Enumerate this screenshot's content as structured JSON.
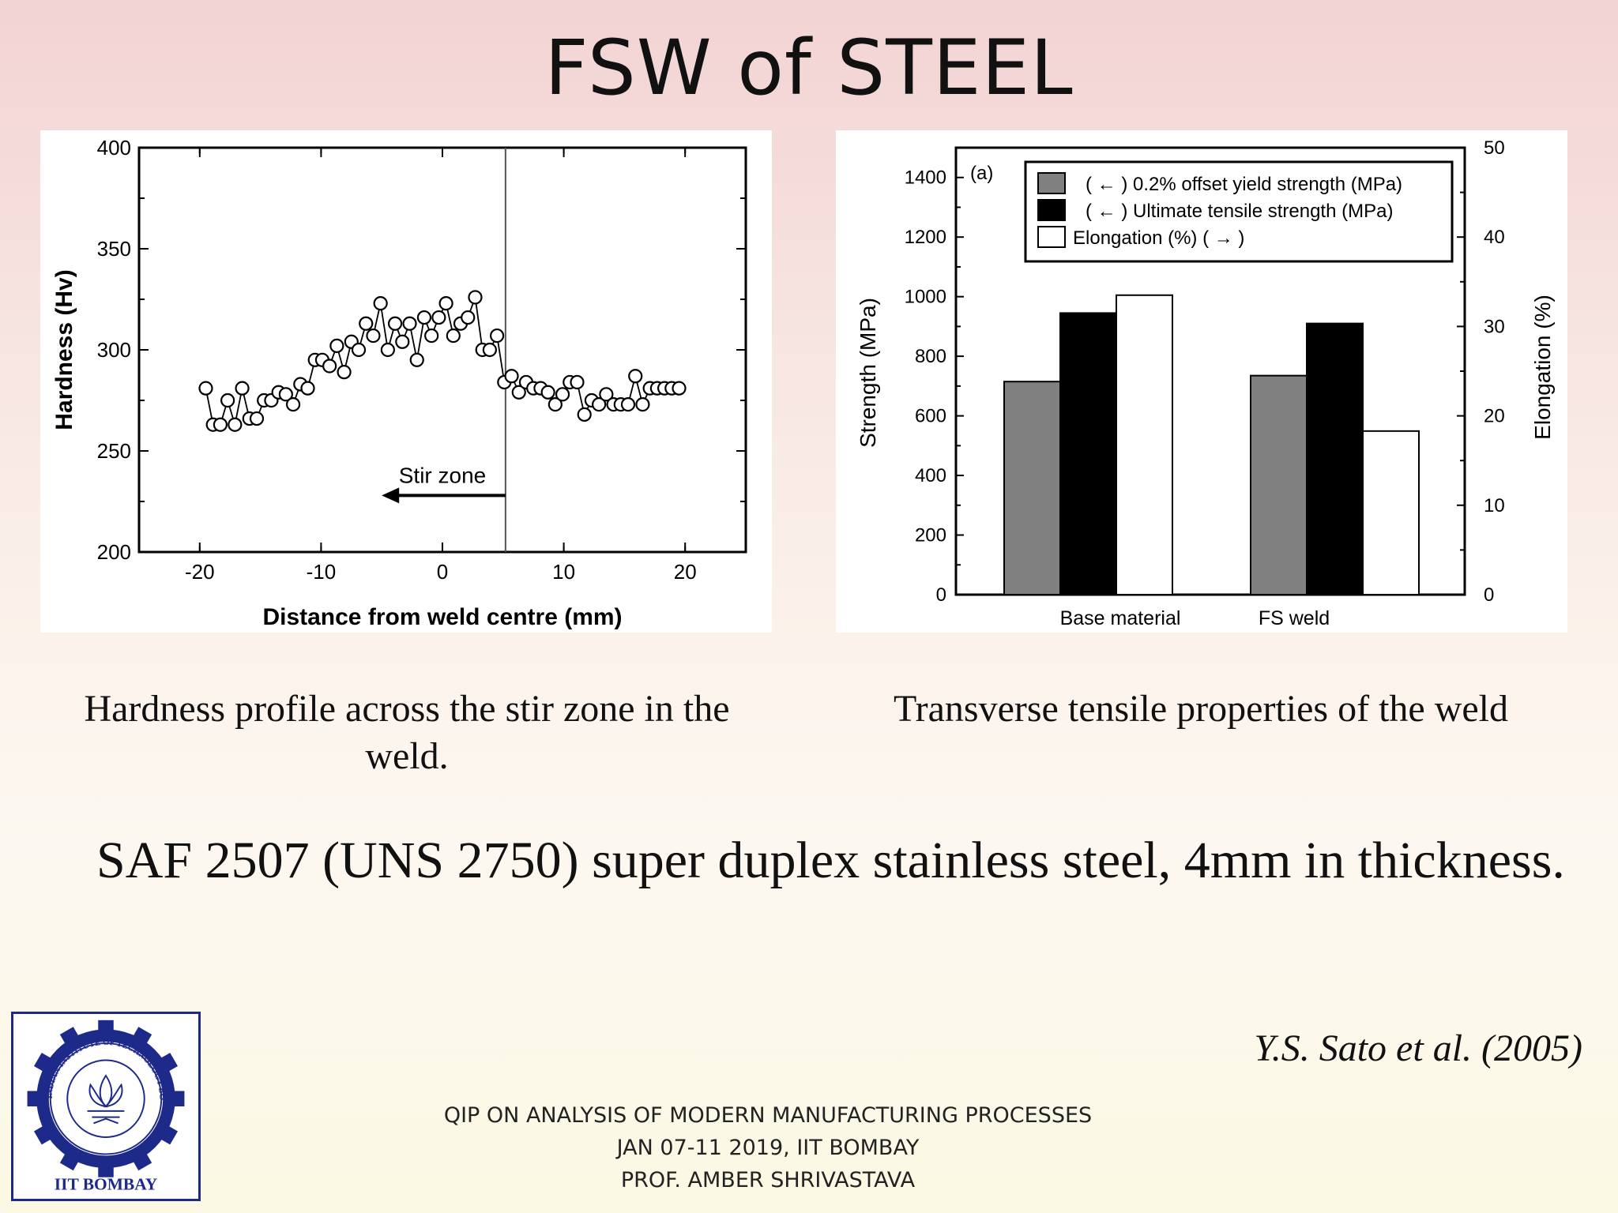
{
  "slide": {
    "title": "FSW of STEEL",
    "caption_left": "Hardness profile across the stir zone in the weld.",
    "caption_right": "Transverse tensile properties of the weld",
    "material_text": "SAF 2507 (UNS 2750) super duplex stainless steel, 4mm in thickness.",
    "citation": "Y.S. Sato et al. (2005)",
    "footer": [
      "QIP ON ANALYSIS OF MODERN MANUFACTURING PROCESSES",
      "JAN 07-11 2019, IIT BOMBAY",
      "PROF. AMBER SHRIVASTAVA"
    ],
    "logo_text": "IIT BOMBAY",
    "logo_ring_text": "INDIAN INSTITUTE OF TECHNOLOGY BOMBAY"
  },
  "chart_data": [
    {
      "type": "line",
      "xlabel": "Distance from weld centre (mm)",
      "ylabel": "Hardness (Hv)",
      "xlim": [
        -25,
        25
      ],
      "ylim": [
        200,
        400
      ],
      "xticks": [
        -20,
        -10,
        0,
        10,
        20
      ],
      "xtick_labels": [
        "-20",
        "-10",
        "0",
        "10",
        "20"
      ],
      "yticks": [
        200,
        250,
        300,
        350,
        400
      ],
      "ytick_labels": [
        "200",
        "250",
        "300",
        "350",
        "400"
      ],
      "vline_x": 5.2,
      "annotation": "Stir zone",
      "grid": false,
      "series": [
        {
          "x": [
            -19.5,
            -18.9,
            -18.3,
            -17.7,
            -17.1,
            -16.5,
            -15.9,
            -15.3,
            -14.7,
            -14.1,
            -13.5,
            -12.9,
            -12.3,
            -11.7,
            -11.1,
            -10.5,
            -9.9,
            -9.3,
            -8.7,
            -8.1,
            -7.5,
            -6.9,
            -6.3,
            -5.7,
            -5.1,
            -4.5,
            -3.9,
            -3.3,
            -2.7,
            -2.1,
            -1.5,
            -0.9,
            -0.3,
            0.3,
            0.9,
            1.5,
            2.1,
            2.7,
            3.3,
            3.9,
            4.5,
            5.1,
            5.7,
            6.3,
            6.9,
            7.5,
            8.1,
            8.7,
            9.3,
            9.9,
            10.5,
            11.1,
            11.7,
            12.3,
            12.9,
            13.5,
            14.1,
            14.7,
            15.3,
            15.9,
            16.5,
            17.1,
            17.7,
            18.3,
            18.9,
            19.5
          ],
          "values": [
            281,
            263,
            263,
            275,
            263,
            281,
            266,
            266,
            275,
            275,
            279,
            278,
            273,
            283,
            281,
            295,
            295,
            292,
            302,
            289,
            304,
            300,
            313,
            307,
            323,
            300,
            313,
            304,
            313,
            295,
            316,
            307,
            316,
            323,
            307,
            313,
            316,
            326,
            300,
            300,
            307,
            284,
            287,
            279,
            284,
            281,
            281,
            279,
            273,
            278,
            284,
            284,
            268,
            275,
            273,
            278,
            273,
            273,
            273,
            287,
            273,
            281,
            281,
            281,
            281,
            281
          ]
        }
      ]
    },
    {
      "type": "bar",
      "categories": [
        "Base material",
        "FS weld"
      ],
      "panel_label": "(a)",
      "ylabel": "Strength (MPa)",
      "y2label": "Elongation (%)",
      "ylim": [
        0,
        1500
      ],
      "y2lim": [
        0,
        50
      ],
      "yticks": [
        0,
        200,
        400,
        600,
        800,
        1000,
        1200,
        1400
      ],
      "ytick_labels": [
        "0",
        "200",
        "400",
        "600",
        "800",
        "1000",
        "1200",
        "1400"
      ],
      "y2ticks": [
        0,
        10,
        20,
        30,
        40,
        50
      ],
      "y2tick_labels": [
        "0",
        "10",
        "20",
        "30",
        "40",
        "50"
      ],
      "legend_placement": "top",
      "series": [
        {
          "name": "( ← ) 0.2% offset yield strength (MPa)",
          "axis": "left",
          "color": "#808080",
          "values": [
            715,
            735
          ]
        },
        {
          "name": "( ← ) Ultimate tensile strength (MPa)",
          "axis": "left",
          "color": "#000000",
          "values": [
            945,
            910
          ]
        },
        {
          "name": "Elongation (%) ( → )",
          "axis": "right",
          "color": "#ffffff",
          "values": [
            33.5,
            18.3
          ]
        }
      ]
    }
  ]
}
